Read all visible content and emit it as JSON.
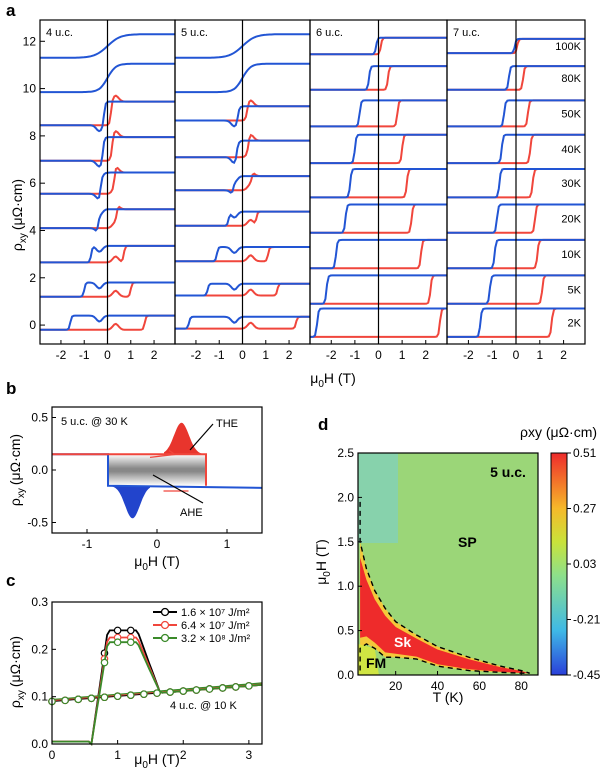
{
  "chart_data": [
    {
      "panel": "a",
      "type": "line",
      "ylabel_main": "ρ",
      "ylabel_sub": "xy",
      "ylabel_unit": "(μΩ·cm)",
      "xlabel_main": "μ",
      "xlabel_sub": "0",
      "xlabel_rest": "H (T)",
      "y_ticks": [
        "12",
        "10",
        "8",
        "6",
        "4",
        "2",
        "0"
      ],
      "x_ticks": [
        "-2",
        "-1",
        "0",
        "1",
        "2"
      ],
      "ylim": [
        -0.8,
        12.9
      ],
      "xlim": [
        -2.9,
        2.9
      ],
      "thickness_labels": [
        "4 u.c.",
        "5 u.c.",
        "6 u.c.",
        "7 u.c."
      ],
      "temperatures": [
        "100K",
        "80K",
        "50K",
        "40K",
        "30K",
        "20K",
        "10K",
        "5K",
        "2K"
      ],
      "curve_offsets": {
        "4uc": [
          11.8,
          10.45,
          8.95,
          7.45,
          6.0,
          4.5,
          3.0,
          1.5,
          0.1
        ],
        "5uc": [
          11.8,
          10.45,
          8.95,
          7.45,
          6.0,
          4.5,
          3.0,
          1.5,
          0.1
        ],
        "6uc": [
          11.8,
          10.45,
          8.95,
          7.45,
          6.0,
          4.5,
          3.0,
          1.5,
          0.1
        ],
        "7uc": [
          11.8,
          10.45,
          8.95,
          7.45,
          6.0,
          4.5,
          3.0,
          1.5,
          0.1
        ]
      },
      "half_amplitude": {
        "4uc": [
          0.0,
          0.0,
          0.5,
          0.5,
          0.45,
          0.4,
          0.35,
          0.3,
          0.3
        ],
        "5uc": [
          0.0,
          0.0,
          0.3,
          0.35,
          0.3,
          0.3,
          0.3,
          0.25,
          0.25
        ],
        "6uc": [
          0.35,
          0.5,
          0.55,
          0.6,
          0.6,
          0.6,
          0.6,
          0.6,
          0.6
        ],
        "7uc": [
          0.3,
          0.5,
          0.55,
          0.6,
          0.6,
          0.6,
          0.6,
          0.6,
          0.6
        ]
      },
      "coercive_field_T": {
        "4uc": [
          0.0,
          0.0,
          0.15,
          0.2,
          0.3,
          0.4,
          0.7,
          1.0,
          1.6
        ],
        "5uc": [
          0.0,
          0.0,
          0.2,
          0.25,
          0.4,
          0.6,
          1.1,
          1.5,
          2.3
        ],
        "6uc": [
          0.1,
          0.4,
          0.8,
          1.0,
          1.2,
          1.4,
          1.8,
          2.2,
          2.6
        ],
        "7uc": [
          0.05,
          0.3,
          0.5,
          0.6,
          0.7,
          0.8,
          0.9,
          1.1,
          1.5
        ]
      },
      "sweep_colors": {
        "up": "#f0463c",
        "down": "#2255d4"
      }
    },
    {
      "panel": "b",
      "type": "line",
      "annotation": "5 u.c. @ 30 K",
      "labels": [
        "THE",
        "AHE"
      ],
      "y_ticks": [
        "0.5",
        "0.0",
        "-0.5"
      ],
      "x_ticks": [
        "-1",
        "0",
        "1"
      ],
      "ylim": [
        -0.6,
        0.6
      ],
      "xlim": [
        -1.5,
        1.5
      ],
      "hysteresis": {
        "ahe_high": 0.15,
        "ahe_low": -0.15,
        "switch_up_T": 0.7,
        "switch_down_T": -0.7,
        "the_peak": 0.45,
        "the_peak_T": 0.35,
        "the_dip": -0.46,
        "the_dip_T": -0.35
      }
    },
    {
      "panel": "c",
      "type": "line",
      "annotation": "4 u.c. @ 10 K",
      "y_ticks": [
        "0.3",
        "0.2",
        "0.1",
        "0.0"
      ],
      "x_ticks": [
        "0",
        "1",
        "2",
        "3"
      ],
      "ylim": [
        0,
        0.3
      ],
      "xlim": [
        0,
        3.2
      ],
      "series": [
        {
          "name": "1.6 × 10⁷ J/m²",
          "color": "#000000",
          "peak": 0.24
        },
        {
          "name": "6.4 × 10⁷ J/m²",
          "color": "#f0463c",
          "peak": 0.225
        },
        {
          "name": "3.2 × 10⁸ J/m²",
          "color": "#3a8a2a",
          "peak": 0.215
        }
      ],
      "legend_position": "top-right",
      "baseline": {
        "x": [
          0,
          3.2
        ],
        "y": [
          0.09,
          0.125
        ]
      },
      "switch_T": 0.6,
      "marker_x": [
        0.0,
        0.2,
        0.4,
        0.6,
        0.8,
        1.0,
        1.2,
        1.4,
        1.6,
        1.8,
        2.0,
        2.2,
        2.4,
        2.6,
        2.8,
        3.0
      ]
    },
    {
      "panel": "d",
      "type": "heatmap",
      "title": "5 u.c.",
      "colorbar_label": "ρxy (μΩ·cm)",
      "colorbar_ticks": [
        "0.51",
        "0.27",
        "0.03",
        "-0.21",
        "-0.45"
      ],
      "clim": [
        -0.45,
        0.51
      ],
      "x_ticks": [
        "20",
        "40",
        "60",
        "80"
      ],
      "y_ticks": [
        "2.5",
        "2.0",
        "1.5",
        "1.0",
        "0.5",
        "0.0"
      ],
      "xlim": [
        2,
        88
      ],
      "ylim": [
        0,
        2.5
      ],
      "regions": [
        "SP",
        "Sk",
        "FM"
      ],
      "sk_boundary_T": [
        3,
        3,
        6,
        10,
        15,
        20,
        30,
        40,
        55,
        70,
        80,
        84
      ],
      "sk_boundary_upper_H": [
        1.95,
        1.5,
        1.2,
        0.95,
        0.75,
        0.6,
        0.45,
        0.32,
        0.2,
        0.1,
        0.05,
        0.02
      ],
      "sk_boundary_lower_H": [
        0.05,
        0.3,
        0.35,
        0.3,
        0.2,
        0.2,
        0.18,
        0.1,
        0.05,
        0.03,
        0.02,
        0.02
      ]
    }
  ],
  "panel_letters": [
    "a",
    "b",
    "c",
    "d"
  ]
}
